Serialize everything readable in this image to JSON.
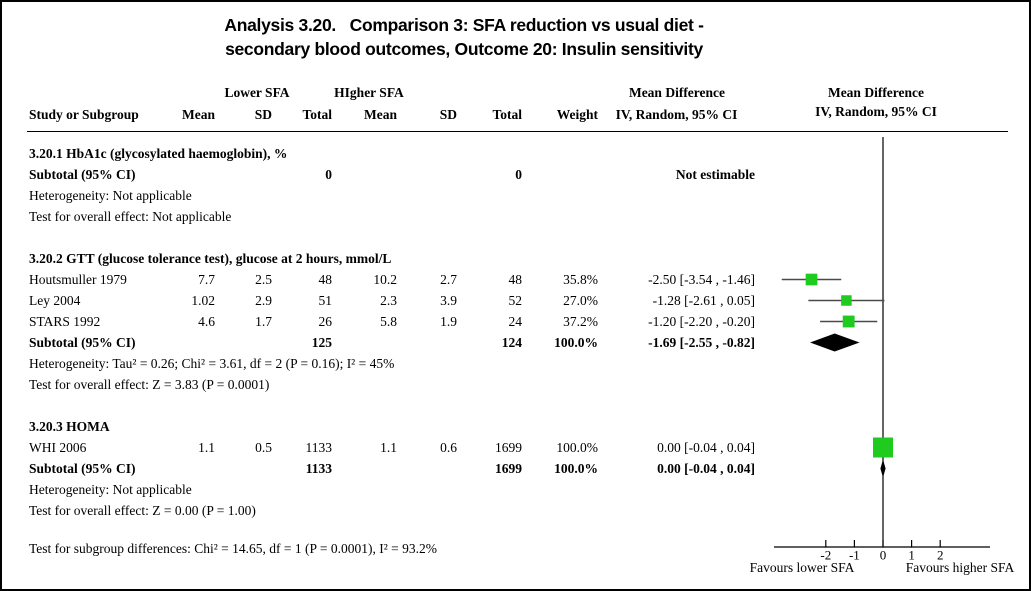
{
  "title": {
    "line1": "Analysis 3.20.   Comparison 3: SFA reduction vs usual diet -",
    "line2": "secondary blood outcomes, Outcome 20: Insulin sensitivity"
  },
  "header": {
    "group_lower": "Lower SFA",
    "group_higher": "HIgher SFA",
    "col_study": "Study or Subgroup",
    "col_mean": "Mean",
    "col_sd": "SD",
    "col_total": "Total",
    "col_weight": "Weight",
    "md_label": "Mean Difference",
    "md_sub": "IV, Random, 95% CI"
  },
  "sections": [
    {
      "heading": "3.20.1 HbA1c (glycosylated haemoglobin), %",
      "rows": [
        {
          "type": "subtotal",
          "label": "Subtotal (95% CI)",
          "total1": "0",
          "total2": "0",
          "ci": "Not estimable"
        }
      ],
      "footnotes": [
        "Heterogeneity: Not applicable",
        "Test for overall effect: Not applicable"
      ]
    },
    {
      "heading": "3.20.2 GTT (glucose tolerance test), glucose at 2 hours, mmol/L",
      "rows": [
        {
          "type": "study",
          "label": "Houtsmuller 1979",
          "mean1": "7.7",
          "sd1": "2.5",
          "total1": "48",
          "mean2": "10.2",
          "sd2": "2.7",
          "total2": "48",
          "weight": "35.8%",
          "ci": "-2.50 [-3.54 , -1.46]"
        },
        {
          "type": "study",
          "label": "Ley 2004",
          "mean1": "1.02",
          "sd1": "2.9",
          "total1": "51",
          "mean2": "2.3",
          "sd2": "3.9",
          "total2": "52",
          "weight": "27.0%",
          "ci": "-1.28 [-2.61 , 0.05]"
        },
        {
          "type": "study",
          "label": "STARS 1992",
          "mean1": "4.6",
          "sd1": "1.7",
          "total1": "26",
          "mean2": "5.8",
          "sd2": "1.9",
          "total2": "24",
          "weight": "37.2%",
          "ci": "-1.20 [-2.20 , -0.20]"
        },
        {
          "type": "subtotal",
          "label": "Subtotal (95% CI)",
          "total1": "125",
          "total2": "124",
          "weight": "100.0%",
          "ci": "-1.69 [-2.55 , -0.82]"
        }
      ],
      "footnotes": [
        "Heterogeneity: Tau² = 0.26; Chi² = 3.61, df = 2 (P = 0.16); I² = 45%",
        "Test for overall effect: Z = 3.83 (P = 0.0001)"
      ]
    },
    {
      "heading": "3.20.3 HOMA",
      "rows": [
        {
          "type": "study",
          "label": "WHI 2006",
          "mean1": "1.1",
          "sd1": "0.5",
          "total1": "1133",
          "mean2": "1.1",
          "sd2": "0.6",
          "total2": "1699",
          "weight": "100.0%",
          "ci": "0.00 [-0.04 , 0.04]"
        },
        {
          "type": "subtotal",
          "label": "Subtotal (95% CI)",
          "total1": "1133",
          "total2": "1699",
          "weight": "100.0%",
          "ci": "0.00 [-0.04 , 0.04]"
        }
      ],
      "footnotes": [
        "Heterogeneity: Not applicable",
        "Test for overall effect: Z = 0.00 (P = 1.00)"
      ]
    }
  ],
  "footer": {
    "subgroup_test": "Test for subgroup differences: Chi² = 14.65, df = 1 (P = 0.0001), I² = 93.2%",
    "favours_left": "Favours lower SFA",
    "favours_right": "Favours higher SFA"
  },
  "colors": {
    "square": "#1ecb1e",
    "diamond": "#000000",
    "ci_line": "#4a4a4a",
    "axis": "#000000"
  },
  "chart_data": {
    "type": "forest",
    "effect_measure": "Mean Difference (IV, Random, 95% CI)",
    "axis": {
      "ticks": [
        -2,
        -1,
        0,
        1,
        2
      ],
      "zero_line": 0,
      "label_left": "Favours lower SFA",
      "label_right": "Favours higher SFA"
    },
    "items": [
      {
        "label": "Houtsmuller 1979",
        "subgroup": "3.20.2",
        "kind": "square",
        "row": 7,
        "estimate": -2.5,
        "ci_low": -3.54,
        "ci_high": -1.46,
        "weight_pct": 35.8
      },
      {
        "label": "Ley 2004",
        "subgroup": "3.20.2",
        "kind": "square",
        "row": 8,
        "estimate": -1.28,
        "ci_low": -2.61,
        "ci_high": 0.05,
        "weight_pct": 27.0
      },
      {
        "label": "STARS 1992",
        "subgroup": "3.20.2",
        "kind": "square",
        "row": 9,
        "estimate": -1.2,
        "ci_low": -2.2,
        "ci_high": -0.2,
        "weight_pct": 37.2
      },
      {
        "label": "Subtotal 3.20.2",
        "subgroup": "3.20.2",
        "kind": "diamond",
        "row": 10,
        "estimate": -1.69,
        "ci_low": -2.55,
        "ci_high": -0.82,
        "weight_pct": 100.0
      },
      {
        "label": "WHI 2006",
        "subgroup": "3.20.3",
        "kind": "square",
        "row": 15,
        "estimate": 0.0,
        "ci_low": -0.04,
        "ci_high": 0.04,
        "weight_pct": 100.0
      },
      {
        "label": "Subtotal 3.20.3",
        "subgroup": "3.20.3",
        "kind": "diamond",
        "row": 16,
        "estimate": 0.0,
        "ci_low": -0.04,
        "ci_high": 0.04,
        "weight_pct": 100.0
      }
    ]
  }
}
